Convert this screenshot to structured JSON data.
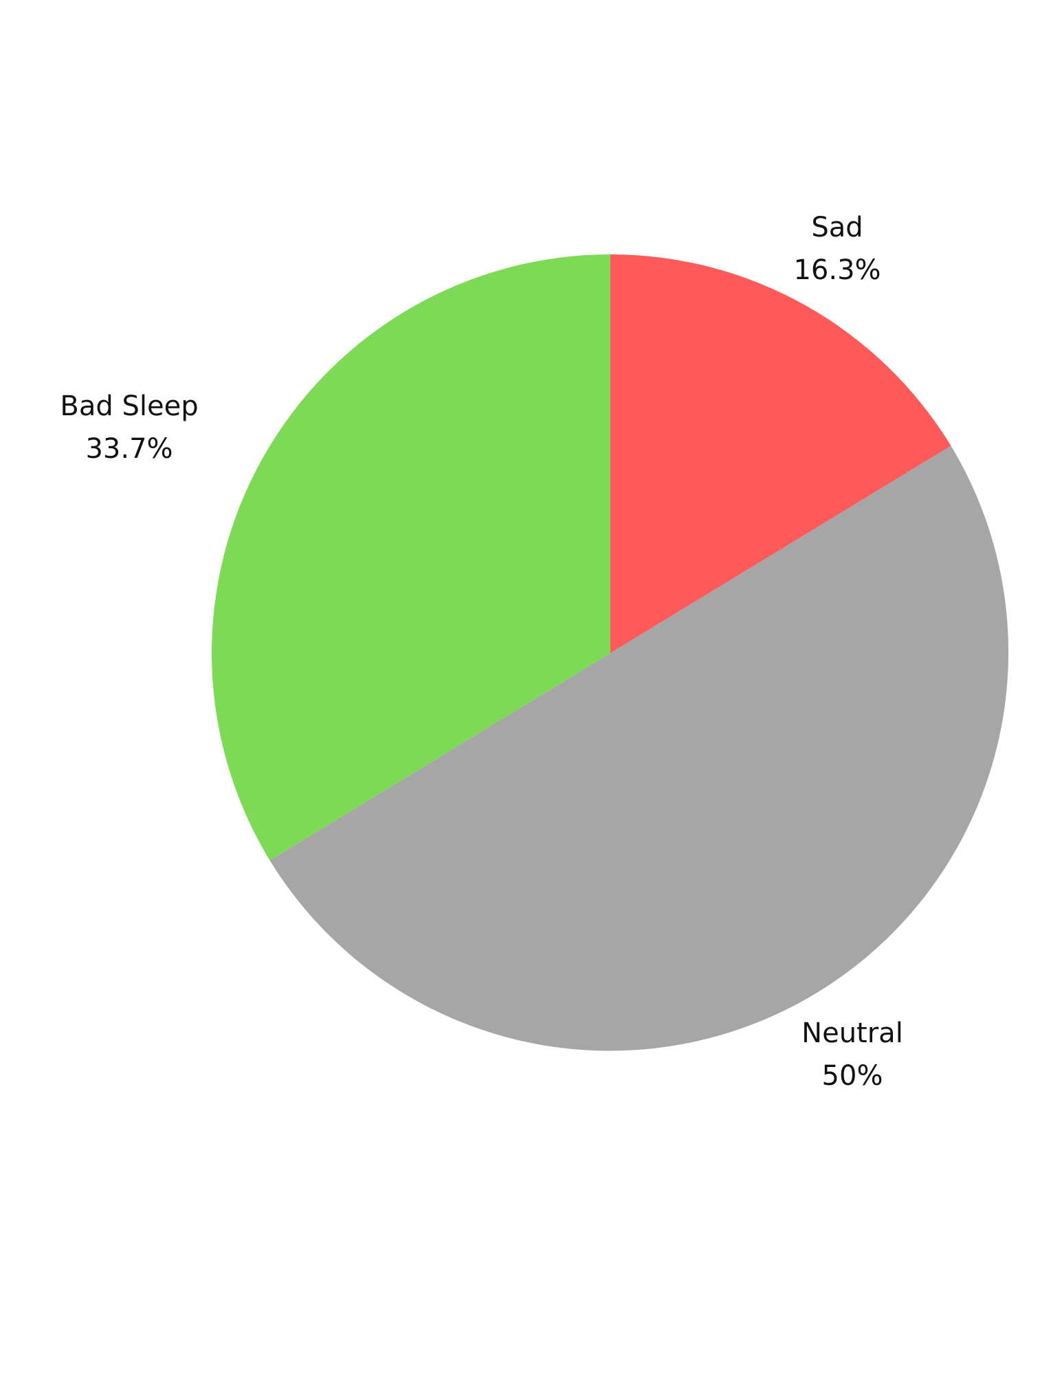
{
  "chart_data": {
    "type": "pie",
    "title": "",
    "start_angle": "12 o'clock, clockwise",
    "slices": [
      {
        "label": "Sad",
        "value": 16.3,
        "value_label": "16.3%",
        "color": "#FF5A5A"
      },
      {
        "label": "Neutral",
        "value": 50,
        "value_label": "50%",
        "color": "#A6A6A6"
      },
      {
        "label": "Bad Sleep",
        "value": 33.7,
        "value_label": "33.7%",
        "color": "#7ED957"
      }
    ]
  }
}
